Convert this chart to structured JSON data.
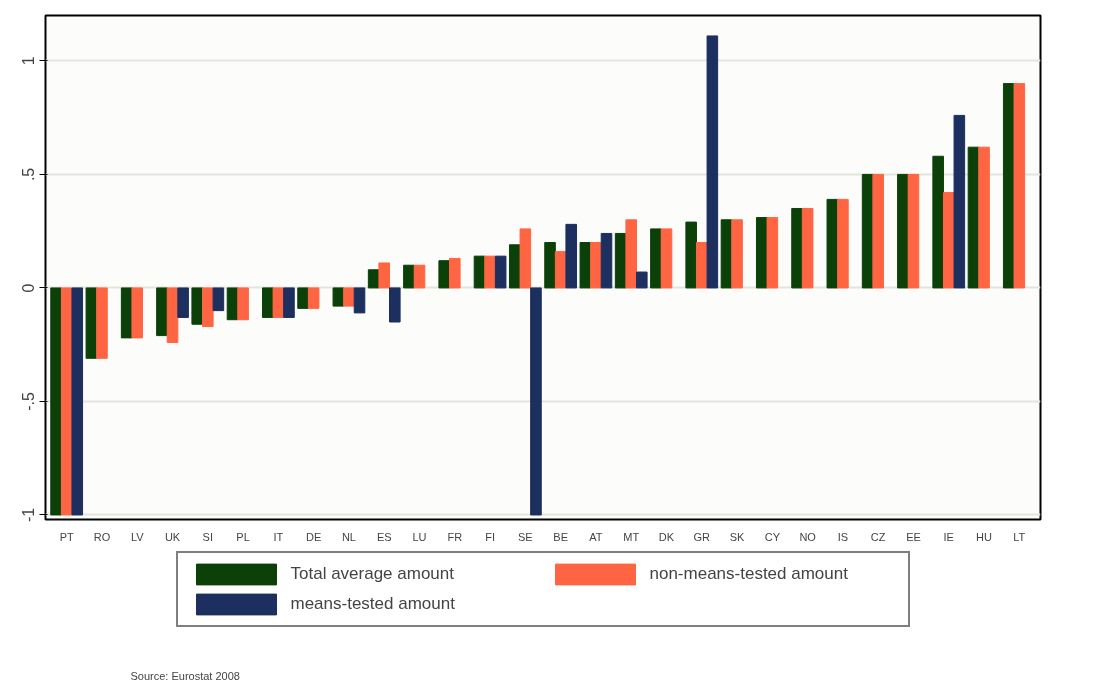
{
  "chart_data": {
    "type": "bar",
    "categories": [
      "PT",
      "RO",
      "LV",
      "UK",
      "SI",
      "PL",
      "IT",
      "DE",
      "NL",
      "ES",
      "LU",
      "FR",
      "FI",
      "SE",
      "BE",
      "AT",
      "MT",
      "DK",
      "GR",
      "SK",
      "CY",
      "NO",
      "IS",
      "CZ",
      "EE",
      "IE",
      "HU",
      "LT"
    ],
    "series": [
      {
        "name": "Total average amount",
        "color": "#0b4108",
        "values": [
          -1,
          -0.31,
          -0.22,
          -0.21,
          -0.16,
          -0.14,
          -0.13,
          -0.09,
          -0.08,
          0.08,
          0.1,
          0.12,
          0.14,
          0.19,
          0.2,
          0.2,
          0.24,
          0.26,
          0.29,
          0.3,
          0.31,
          0.35,
          0.39,
          0.5,
          0.5,
          0.58,
          0.62,
          0.9
        ]
      },
      {
        "name": "non-means-tested amount",
        "color": "#ff6542",
        "values": [
          -1,
          -0.31,
          -0.22,
          -0.24,
          -0.17,
          -0.14,
          -0.13,
          -0.09,
          -0.08,
          0.11,
          0.1,
          0.13,
          0.14,
          0.26,
          0.16,
          0.2,
          0.3,
          0.26,
          0.2,
          0.3,
          0.31,
          0.35,
          0.39,
          0.5,
          0.5,
          0.42,
          0.62,
          0.9
        ]
      },
      {
        "name": "means-tested amount",
        "color": "#1c2f5e",
        "values": [
          -1,
          null,
          null,
          -0.13,
          -0.1,
          null,
          -0.13,
          null,
          -0.11,
          -0.15,
          null,
          null,
          0.14,
          -1,
          0.28,
          0.24,
          0.07,
          null,
          1.11,
          null,
          null,
          null,
          null,
          null,
          null,
          0.76,
          null,
          null
        ]
      }
    ],
    "ylim": [
      -1.02,
      1.2
    ],
    "yticks": [
      {
        "value": -1,
        "label": "-1"
      },
      {
        "value": -0.5,
        "label": "-.5"
      },
      {
        "value": 0,
        "label": "0"
      },
      {
        "value": 0.5,
        "label": ".5"
      },
      {
        "value": 1,
        "label": "1"
      }
    ],
    "grid": "y",
    "legend": "bottom",
    "annotations": [
      "Source: Eurostat 2008"
    ]
  }
}
